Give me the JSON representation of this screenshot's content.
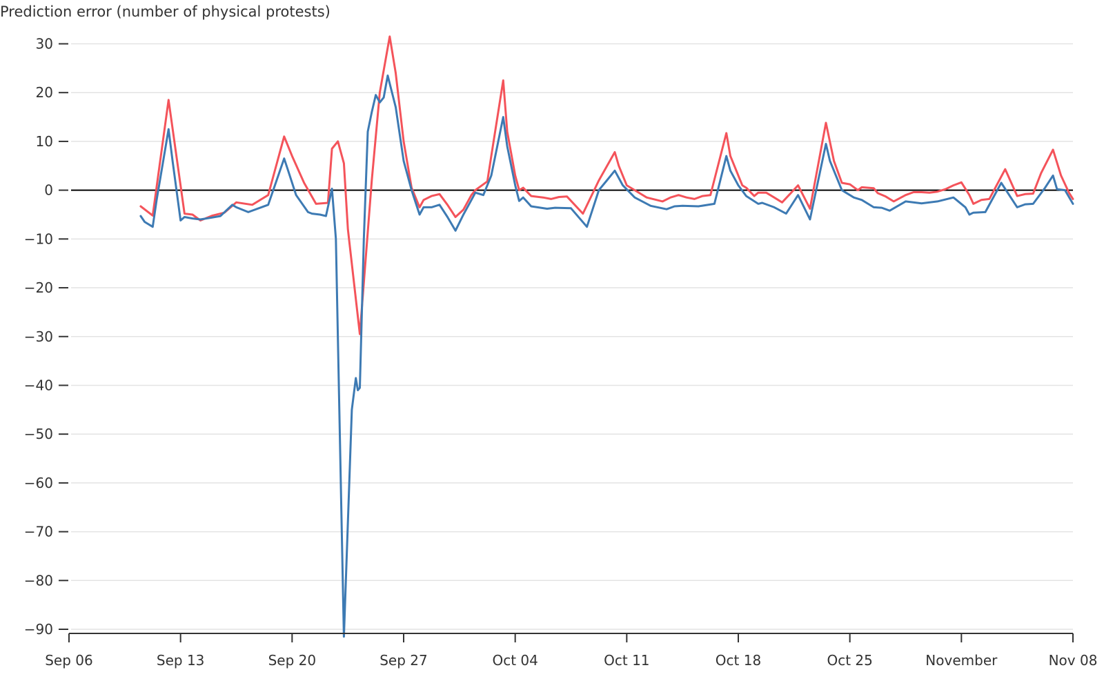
{
  "chart_data": {
    "type": "line",
    "title": "",
    "ylabel": "Prediction error (number of physical protests)",
    "xlabel": "",
    "ylim": [
      -92,
      32
    ],
    "xlim": [
      "2020-09-06",
      "2020-11-08"
    ],
    "grid": true,
    "zero_line": true,
    "y_ticks": [
      30,
      20,
      10,
      0,
      -10,
      -20,
      -30,
      -40,
      -50,
      -60,
      -70,
      -80,
      -90
    ],
    "y_tick_labels": [
      "30",
      "20",
      "10",
      "0",
      "−10",
      "−20",
      "−30",
      "−40",
      "−50",
      "−60",
      "−70",
      "−80",
      "−90"
    ],
    "x_ticks": [
      "2020-09-06",
      "2020-09-13",
      "2020-09-20",
      "2020-09-27",
      "2020-10-04",
      "2020-10-11",
      "2020-10-18",
      "2020-10-25",
      "2020-11-01",
      "2020-11-08"
    ],
    "x_tick_labels": [
      "Sep 06",
      "Sep 13",
      "Sep 20",
      "Sep 27",
      "Oct 04",
      "Oct 11",
      "Oct 18",
      "Oct 25",
      "November",
      "Nov 08"
    ],
    "series": [
      {
        "color": "#f4535a",
        "points": [
          [
            "2020-09-10 12:00",
            -3.3
          ],
          [
            "2020-09-11 06:00",
            -5.2
          ],
          [
            "2020-09-12 06:00",
            18.5
          ],
          [
            "2020-09-13 06:00",
            -4.8
          ],
          [
            "2020-09-13 18:00",
            -5.0
          ],
          [
            "2020-09-14 06:00",
            -6.2
          ],
          [
            "2020-09-15 00:00",
            -5.2
          ],
          [
            "2020-09-15 18:00",
            -4.6
          ],
          [
            "2020-09-16 12:00",
            -2.5
          ],
          [
            "2020-09-17 12:00",
            -3.0
          ],
          [
            "2020-09-18 12:00",
            -1.0
          ],
          [
            "2020-09-19 12:00",
            11.0
          ],
          [
            "2020-09-20 00:00",
            7.0
          ],
          [
            "2020-09-20 18:00",
            1.5
          ],
          [
            "2020-09-21 12:00",
            -2.8
          ],
          [
            "2020-09-22 06:00",
            -2.6
          ],
          [
            "2020-09-22 12:00",
            8.5
          ],
          [
            "2020-09-22 21:00",
            10.0
          ],
          [
            "2020-09-23 06:00",
            5.5
          ],
          [
            "2020-09-23 12:00",
            -8.0
          ],
          [
            "2020-09-24 06:00",
            -29.5
          ],
          [
            "2020-09-25 00:00",
            2.0
          ],
          [
            "2020-09-25 12:00",
            20.0
          ],
          [
            "2020-09-26 03:00",
            31.5
          ],
          [
            "2020-09-26 12:00",
            24.0
          ],
          [
            "2020-09-27 00:00",
            10.0
          ],
          [
            "2020-09-27 12:00",
            0.5
          ],
          [
            "2020-09-28 00:00",
            -3.5
          ],
          [
            "2020-09-28 06:00",
            -2.0
          ],
          [
            "2020-09-28 18:00",
            -1.2
          ],
          [
            "2020-09-29 06:00",
            -0.8
          ],
          [
            "2020-09-29 18:00",
            -3.0
          ],
          [
            "2020-09-30 06:00",
            -5.5
          ],
          [
            "2020-09-30 18:00",
            -4.0
          ],
          [
            "2020-10-01 06:00",
            -1.0
          ],
          [
            "2020-10-01 12:00",
            0.0
          ],
          [
            "2020-10-02 06:00",
            1.8
          ],
          [
            "2020-10-02 12:00",
            7.0
          ],
          [
            "2020-10-03 06:00",
            22.5
          ],
          [
            "2020-10-03 12:00",
            12.0
          ],
          [
            "2020-10-04 00:00",
            3.0
          ],
          [
            "2020-10-04 06:00",
            0.0
          ],
          [
            "2020-10-04 12:00",
            0.5
          ],
          [
            "2020-10-05 00:00",
            -1.2
          ],
          [
            "2020-10-05 18:00",
            -1.5
          ],
          [
            "2020-10-06 06:00",
            -1.8
          ],
          [
            "2020-10-06 18:00",
            -1.4
          ],
          [
            "2020-10-07 06:00",
            -1.3
          ],
          [
            "2020-10-08 06:00",
            -4.8
          ],
          [
            "2020-10-09 06:00",
            2.0
          ],
          [
            "2020-10-10 06:00",
            7.8
          ],
          [
            "2020-10-10 12:00",
            5.0
          ],
          [
            "2020-10-11 00:00",
            1.0
          ],
          [
            "2020-10-11 12:00",
            0.0
          ],
          [
            "2020-10-12 06:00",
            -1.5
          ],
          [
            "2020-10-13 06:00",
            -2.3
          ],
          [
            "2020-10-13 18:00",
            -1.5
          ],
          [
            "2020-10-14 06:00",
            -1.0
          ],
          [
            "2020-10-14 18:00",
            -1.5
          ],
          [
            "2020-10-15 06:00",
            -1.8
          ],
          [
            "2020-10-15 18:00",
            -1.2
          ],
          [
            "2020-10-16 06:00",
            -1.0
          ],
          [
            "2020-10-17 06:00",
            11.7
          ],
          [
            "2020-10-17 12:00",
            7.0
          ],
          [
            "2020-10-18 06:00",
            1.0
          ],
          [
            "2020-10-18 12:00",
            0.5
          ],
          [
            "2020-10-19 00:00",
            -1.2
          ],
          [
            "2020-10-19 06:00",
            -0.5
          ],
          [
            "2020-10-19 18:00",
            -0.5
          ],
          [
            "2020-10-20 06:00",
            -1.5
          ],
          [
            "2020-10-20 18:00",
            -2.5
          ],
          [
            "2020-10-21 18:00",
            1.0
          ],
          [
            "2020-10-22 12:00",
            -3.8
          ],
          [
            "2020-10-23 12:00",
            13.8
          ],
          [
            "2020-10-24 00:00",
            6.0
          ],
          [
            "2020-10-24 12:00",
            1.5
          ],
          [
            "2020-10-25 00:00",
            1.2
          ],
          [
            "2020-10-25 12:00",
            0.0
          ],
          [
            "2020-10-25 18:00",
            0.6
          ],
          [
            "2020-10-26 12:00",
            0.4
          ],
          [
            "2020-10-26 18:00",
            -0.6
          ],
          [
            "2020-10-27 06:00",
            -1.3
          ],
          [
            "2020-10-27 18:00",
            -2.3
          ],
          [
            "2020-10-28 12:00",
            -1.0
          ],
          [
            "2020-10-29 00:00",
            -0.4
          ],
          [
            "2020-10-29 12:00",
            -0.4
          ],
          [
            "2020-10-30 00:00",
            -0.5
          ],
          [
            "2020-10-30 12:00",
            -0.3
          ],
          [
            "2020-10-31 00:00",
            0.2
          ],
          [
            "2020-10-31 12:00",
            1.0
          ],
          [
            "2020-11-01 00:00",
            1.6
          ],
          [
            "2020-11-01 12:00",
            -1.0
          ],
          [
            "2020-11-01 18:00",
            -2.8
          ],
          [
            "2020-11-02 06:00",
            -2.0
          ],
          [
            "2020-11-02 18:00",
            -1.8
          ],
          [
            "2020-11-03 18:00",
            4.3
          ],
          [
            "2020-11-04 12:00",
            -1.2
          ],
          [
            "2020-11-05 00:00",
            -0.8
          ],
          [
            "2020-11-05 12:00",
            -0.7
          ],
          [
            "2020-11-06 00:00",
            3.5
          ],
          [
            "2020-11-06 18:00",
            8.3
          ],
          [
            "2020-11-07 06:00",
            3.0
          ],
          [
            "2020-11-07 18:00",
            -0.5
          ],
          [
            "2020-11-08 00:00",
            -1.8
          ]
        ]
      },
      {
        "color": "#3d7ab3",
        "points": [
          [
            "2020-09-10 12:00",
            -5.3
          ],
          [
            "2020-09-10 18:00",
            -6.5
          ],
          [
            "2020-09-11 06:00",
            -7.5
          ],
          [
            "2020-09-11 12:00",
            -2.0
          ],
          [
            "2020-09-12 06:00",
            12.5
          ],
          [
            "2020-09-12 12:00",
            6.0
          ],
          [
            "2020-09-13 00:00",
            -6.2
          ],
          [
            "2020-09-13 06:00",
            -5.5
          ],
          [
            "2020-09-13 18:00",
            -5.8
          ],
          [
            "2020-09-14 06:00",
            -6.0
          ],
          [
            "2020-09-15 00:00",
            -5.6
          ],
          [
            "2020-09-15 12:00",
            -5.3
          ],
          [
            "2020-09-16 06:00",
            -3.0
          ],
          [
            "2020-09-16 12:00",
            -3.5
          ],
          [
            "2020-09-17 06:00",
            -4.5
          ],
          [
            "2020-09-18 12:00",
            -3.0
          ],
          [
            "2020-09-19 12:00",
            6.5
          ],
          [
            "2020-09-19 18:00",
            4.0
          ],
          [
            "2020-09-20 06:00",
            -1.0
          ],
          [
            "2020-09-21 00:00",
            -4.5
          ],
          [
            "2020-09-21 06:00",
            -4.8
          ],
          [
            "2020-09-21 18:00",
            -5.0
          ],
          [
            "2020-09-22 03:00",
            -5.3
          ],
          [
            "2020-09-22 12:00",
            0.3
          ],
          [
            "2020-09-22 18:00",
            -10.0
          ],
          [
            "2020-09-23 06:00",
            -91.5
          ],
          [
            "2020-09-23 18:00",
            -45.0
          ],
          [
            "2020-09-24 00:00",
            -38.5
          ],
          [
            "2020-09-24 03:00",
            -41.0
          ],
          [
            "2020-09-24 06:00",
            -40.5
          ],
          [
            "2020-09-24 12:00",
            -10.0
          ],
          [
            "2020-09-24 18:00",
            12.0
          ],
          [
            "2020-09-25 00:00",
            16.0
          ],
          [
            "2020-09-25 06:00",
            19.5
          ],
          [
            "2020-09-25 12:00",
            18.0
          ],
          [
            "2020-09-25 18:00",
            19.0
          ],
          [
            "2020-09-26 00:00",
            23.5
          ],
          [
            "2020-09-26 12:00",
            17.0
          ],
          [
            "2020-09-27 00:00",
            6.0
          ],
          [
            "2020-09-27 12:00",
            0.0
          ],
          [
            "2020-09-28 00:00",
            -5.0
          ],
          [
            "2020-09-28 06:00",
            -3.5
          ],
          [
            "2020-09-28 18:00",
            -3.5
          ],
          [
            "2020-09-29 06:00",
            -3.0
          ],
          [
            "2020-09-29 18:00",
            -5.5
          ],
          [
            "2020-09-30 06:00",
            -8.3
          ],
          [
            "2020-09-30 18:00",
            -5.0
          ],
          [
            "2020-10-01 06:00",
            -2.0
          ],
          [
            "2020-10-01 12:00",
            -0.5
          ],
          [
            "2020-10-02 00:00",
            -1.0
          ],
          [
            "2020-10-02 12:00",
            3.0
          ],
          [
            "2020-10-03 06:00",
            15.0
          ],
          [
            "2020-10-03 12:00",
            9.0
          ],
          [
            "2020-10-04 00:00",
            1.0
          ],
          [
            "2020-10-04 06:00",
            -2.2
          ],
          [
            "2020-10-04 12:00",
            -1.5
          ],
          [
            "2020-10-05 00:00",
            -3.3
          ],
          [
            "2020-10-06 00:00",
            -3.8
          ],
          [
            "2020-10-06 12:00",
            -3.6
          ],
          [
            "2020-10-07 12:00",
            -3.7
          ],
          [
            "2020-10-08 12:00",
            -7.5
          ],
          [
            "2020-10-09 06:00",
            0.0
          ],
          [
            "2020-10-09 18:00",
            2.0
          ],
          [
            "2020-10-10 06:00",
            4.0
          ],
          [
            "2020-10-10 18:00",
            1.0
          ],
          [
            "2020-10-11 12:00",
            -1.5
          ],
          [
            "2020-10-12 12:00",
            -3.2
          ],
          [
            "2020-10-13 12:00",
            -3.9
          ],
          [
            "2020-10-14 00:00",
            -3.3
          ],
          [
            "2020-10-14 12:00",
            -3.2
          ],
          [
            "2020-10-15 12:00",
            -3.3
          ],
          [
            "2020-10-16 12:00",
            -2.8
          ],
          [
            "2020-10-17 06:00",
            7.0
          ],
          [
            "2020-10-17 12:00",
            4.0
          ],
          [
            "2020-10-18 00:00",
            1.0
          ],
          [
            "2020-10-18 12:00",
            -1.2
          ],
          [
            "2020-10-19 06:00",
            -2.8
          ],
          [
            "2020-10-19 12:00",
            -2.6
          ],
          [
            "2020-10-20 06:00",
            -3.5
          ],
          [
            "2020-10-21 00:00",
            -4.8
          ],
          [
            "2020-10-21 18:00",
            -1.0
          ],
          [
            "2020-10-22 12:00",
            -6.0
          ],
          [
            "2020-10-23 12:00",
            9.5
          ],
          [
            "2020-10-23 18:00",
            6.0
          ],
          [
            "2020-10-24 12:00",
            0.0
          ],
          [
            "2020-10-24 18:00",
            -0.5
          ],
          [
            "2020-10-25 06:00",
            -1.5
          ],
          [
            "2020-10-25 18:00",
            -2.0
          ],
          [
            "2020-10-26 12:00",
            -3.5
          ],
          [
            "2020-10-27 00:00",
            -3.6
          ],
          [
            "2020-10-27 12:00",
            -4.2
          ],
          [
            "2020-10-28 12:00",
            -2.3
          ],
          [
            "2020-10-29 12:00",
            -2.7
          ],
          [
            "2020-10-30 12:00",
            -2.3
          ],
          [
            "2020-10-31 12:00",
            -1.5
          ],
          [
            "2020-11-01 06:00",
            -3.5
          ],
          [
            "2020-11-01 12:00",
            -5.0
          ],
          [
            "2020-11-01 18:00",
            -4.6
          ],
          [
            "2020-11-02 12:00",
            -4.5
          ],
          [
            "2020-11-03 12:00",
            1.5
          ],
          [
            "2020-11-04 12:00",
            -3.5
          ],
          [
            "2020-11-05 00:00",
            -2.9
          ],
          [
            "2020-11-05 12:00",
            -2.8
          ],
          [
            "2020-11-06 06:00",
            0.5
          ],
          [
            "2020-11-06 18:00",
            3.0
          ],
          [
            "2020-11-07 00:00",
            0.2
          ],
          [
            "2020-11-07 12:00",
            0.0
          ],
          [
            "2020-11-08 00:00",
            -2.8
          ]
        ]
      }
    ]
  }
}
